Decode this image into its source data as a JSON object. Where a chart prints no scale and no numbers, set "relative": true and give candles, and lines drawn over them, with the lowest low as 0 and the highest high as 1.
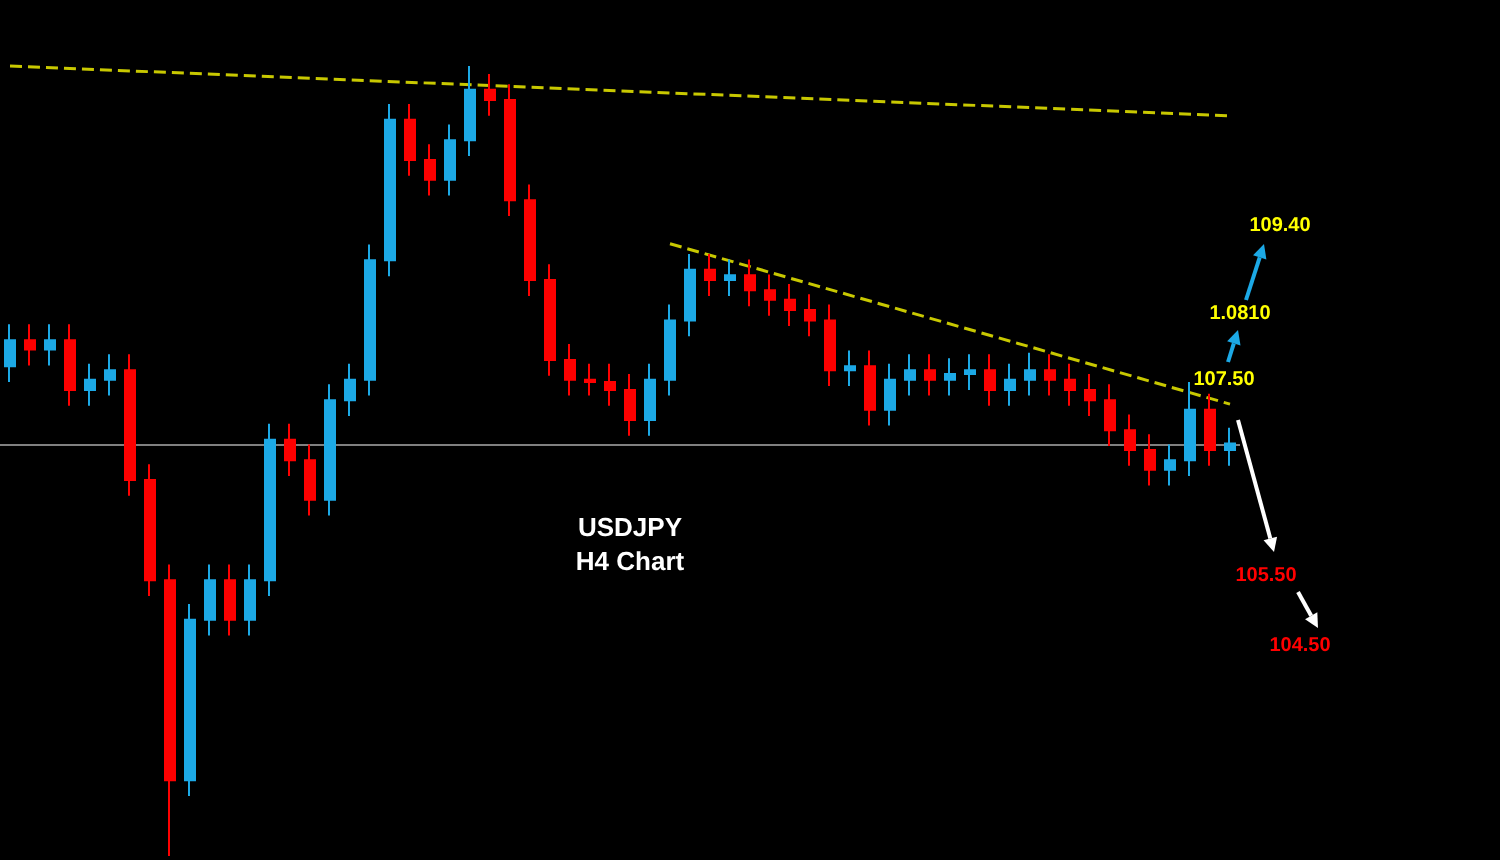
{
  "chart_data": {
    "type": "candlestick",
    "title": "USDJPY",
    "subtitle": "H4 Chart",
    "relative": true,
    "tick_labels": false,
    "categories": [
      null,
      null,
      null,
      null,
      null,
      null,
      null,
      null,
      null,
      null,
      null,
      null,
      null,
      null,
      null,
      null,
      null,
      null,
      null,
      null,
      null,
      null,
      null,
      null,
      null,
      null,
      null,
      null,
      null,
      null,
      null,
      null,
      null,
      null,
      null,
      null,
      null,
      null,
      null,
      null,
      null,
      null,
      null,
      null,
      null,
      null,
      null,
      null,
      null,
      null,
      null,
      null,
      null,
      null,
      null,
      null,
      null,
      null,
      null,
      null,
      null,
      null
    ],
    "ohlc": [
      [
        0.62,
        0.673,
        0.6,
        0.653
      ],
      [
        0.653,
        0.673,
        0.621,
        0.641
      ],
      [
        0.641,
        0.673,
        0.621,
        0.653
      ],
      [
        0.653,
        0.673,
        0.57,
        0.59
      ],
      [
        0.59,
        0.623,
        0.57,
        0.603
      ],
      [
        0.603,
        0.635,
        0.583,
        0.615
      ],
      [
        0.615,
        0.635,
        0.456,
        0.476
      ],
      [
        0.476,
        0.496,
        0.329,
        0.349
      ],
      [
        0.349,
        0.369,
        0,
        0.096
      ],
      [
        0.096,
        0.319,
        0.076,
        0.299
      ],
      [
        0.299,
        0.369,
        0.279,
        0.349
      ],
      [
        0.349,
        0.369,
        0.279,
        0.299
      ],
      [
        0.299,
        0.369,
        0.279,
        0.349
      ],
      [
        0.349,
        0.547,
        0.329,
        0.527
      ],
      [
        0.527,
        0.547,
        0.481,
        0.501
      ],
      [
        0.501,
        0.521,
        0.431,
        0.451
      ],
      [
        0.451,
        0.597,
        0.431,
        0.577
      ],
      [
        0.577,
        0.623,
        0.557,
        0.603
      ],
      [
        0.603,
        0.774,
        0.583,
        0.754
      ],
      [
        0.754,
        0.952,
        0.734,
        0.932
      ],
      [
        0.932,
        0.952,
        0.861,
        0.881
      ],
      [
        0.881,
        0.901,
        0.836,
        0.856
      ],
      [
        0.856,
        0.926,
        0.836,
        0.906
      ],
      [
        0.906,
        1,
        0.886,
        0.97
      ],
      [
        0.97,
        0.99,
        0.937,
        0.957
      ],
      [
        0.957,
        0.977,
        0.81,
        0.83
      ],
      [
        0.83,
        0.85,
        0.709,
        0.729
      ],
      [
        0.729,
        0.749,
        0.608,
        0.628
      ],
      [
        0.628,
        0.648,
        0.583,
        0.603
      ],
      [
        0.603,
        0.623,
        0.583,
        0.6
      ],
      [
        0.6,
        0.623,
        0.57,
        0.59
      ],
      [
        0.59,
        0.61,
        0.532,
        0.552
      ],
      [
        0.552,
        0.623,
        0.532,
        0.603
      ],
      [
        0.603,
        0.698,
        0.583,
        0.678
      ],
      [
        0.678,
        0.762,
        0.658,
        0.742
      ],
      [
        0.742,
        0.762,
        0.709,
        0.729
      ],
      [
        0.729,
        0.755,
        0.709,
        0.735
      ],
      [
        0.735,
        0.755,
        0.696,
        0.716
      ],
      [
        0.716,
        0.736,
        0.684,
        0.704
      ],
      [
        0.704,
        0.724,
        0.671,
        0.691
      ],
      [
        0.691,
        0.711,
        0.658,
        0.678
      ],
      [
        0.678,
        0.698,
        0.595,
        0.615
      ],
      [
        0.615,
        0.64,
        0.595,
        0.62
      ],
      [
        0.62,
        0.64,
        0.545,
        0.565
      ],
      [
        0.565,
        0.623,
        0.545,
        0.603
      ],
      [
        0.603,
        0.635,
        0.583,
        0.615
      ],
      [
        0.615,
        0.635,
        0.583,
        0.603
      ],
      [
        0.603,
        0.63,
        0.583,
        0.61
      ],
      [
        0.61,
        0.635,
        0.59,
        0.615
      ],
      [
        0.615,
        0.635,
        0.57,
        0.59
      ],
      [
        0.59,
        0.623,
        0.57,
        0.603
      ],
      [
        0.603,
        0.637,
        0.583,
        0.615
      ],
      [
        0.615,
        0.635,
        0.583,
        0.603
      ],
      [
        0.603,
        0.623,
        0.57,
        0.59
      ],
      [
        0.59,
        0.61,
        0.557,
        0.577
      ],
      [
        0.577,
        0.597,
        0.519,
        0.539
      ],
      [
        0.539,
        0.559,
        0.494,
        0.514
      ],
      [
        0.514,
        0.534,
        0.469,
        0.489
      ],
      [
        0.489,
        0.521,
        0.469,
        0.501
      ],
      [
        0.501,
        0.6,
        0.481,
        0.565
      ],
      [
        0.565,
        0.585,
        0.494,
        0.514
      ],
      [
        0.514,
        0.542,
        0.494,
        0.522
      ]
    ],
    "colors": [
      "#1ca9e6",
      "#ff0000",
      "#1ca9e6",
      "#ff0000",
      "#1ca9e6",
      "#1ca9e6",
      "#ff0000",
      "#ff0000",
      "#ff0000",
      "#1ca9e6",
      "#1ca9e6",
      "#ff0000",
      "#1ca9e6",
      "#1ca9e6",
      "#ff0000",
      "#ff0000",
      "#1ca9e6",
      "#1ca9e6",
      "#1ca9e6",
      "#1ca9e6",
      "#ff0000",
      "#ff0000",
      "#1ca9e6",
      "#1ca9e6",
      "#ff0000",
      "#ff0000",
      "#ff0000",
      "#ff0000",
      "#ff0000",
      "#ff0000",
      "#ff0000",
      "#ff0000",
      "#1ca9e6",
      "#1ca9e6",
      "#1ca9e6",
      "#ff0000",
      "#1ca9e6",
      "#ff0000",
      "#ff0000",
      "#ff0000",
      "#ff0000",
      "#ff0000",
      "#1ca9e6",
      "#ff0000",
      "#1ca9e6",
      "#1ca9e6",
      "#ff0000",
      "#1ca9e6",
      "#1ca9e6",
      "#ff0000",
      "#1ca9e6",
      "#1ca9e6",
      "#ff0000",
      "#ff0000",
      "#ff0000",
      "#ff0000",
      "#ff0000",
      "#ff0000",
      "#1ca9e6",
      "#1ca9e6",
      "#ff0000",
      "#1ca9e6"
    ],
    "series": [
      {
        "type": "line",
        "color": "#c8c800",
        "line_style": "dashed",
        "values": [
          1.0,
          null,
          null,
          null,
          null,
          null,
          null,
          null,
          null,
          null,
          null,
          null,
          null,
          null,
          null,
          null,
          null,
          null,
          null,
          null,
          null,
          null,
          null,
          null,
          null,
          null,
          null,
          null,
          null,
          null,
          null,
          null,
          null,
          null,
          null,
          null,
          null,
          null,
          null,
          null,
          null,
          null,
          null,
          null,
          null,
          null,
          null,
          null,
          null,
          null,
          null,
          null,
          null,
          null,
          null,
          null,
          null,
          null,
          null,
          null,
          null,
          0.937
        ]
      },
      {
        "type": "line",
        "color": "#c8c800",
        "line_style": "dashed",
        "values": [
          null,
          null,
          null,
          null,
          null,
          null,
          null,
          null,
          null,
          null,
          null,
          null,
          null,
          null,
          null,
          null,
          null,
          null,
          null,
          null,
          null,
          null,
          null,
          null,
          null,
          null,
          null,
          null,
          null,
          null,
          null,
          null,
          null,
          0.775,
          null,
          null,
          null,
          null,
          null,
          null,
          null,
          null,
          null,
          null,
          null,
          null,
          null,
          null,
          null,
          null,
          null,
          null,
          null,
          null,
          null,
          null,
          null,
          null,
          null,
          null,
          null,
          0.572
        ]
      }
    ],
    "ref_lines": [
      {
        "axis": "y",
        "value": 0.519,
        "color": "#808080",
        "line_style": "solid"
      }
    ],
    "annotations": [
      "109.40",
      "1.0810",
      "107.50",
      "105.50",
      "104.50"
    ]
  }
}
